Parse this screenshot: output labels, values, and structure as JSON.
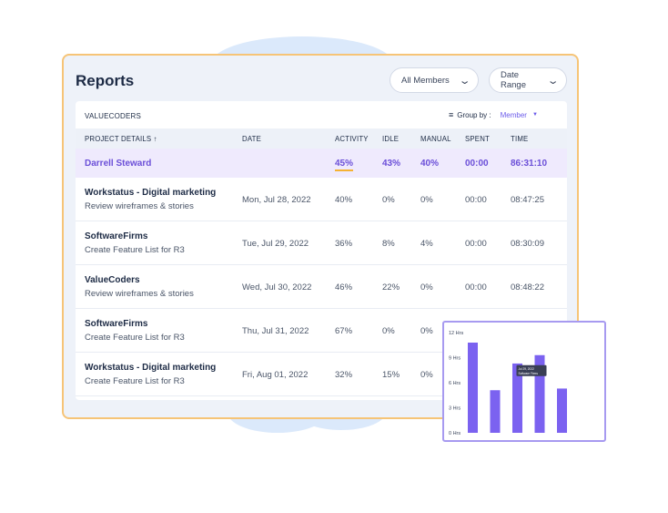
{
  "header": {
    "title": "Reports",
    "members_filter": "All Members",
    "date_filter": "Date Range"
  },
  "card": {
    "org": "VALUECODERS",
    "group_by_label": "Group by :",
    "group_by_value": "Member"
  },
  "columns": [
    "PROJECT DETAILS ↑",
    "DATE",
    "ACTIVITY",
    "IDLE",
    "MANUAL",
    "SPENT",
    "TIME"
  ],
  "summary": {
    "name": "Darrell Steward",
    "activity": "45%",
    "idle": "43%",
    "manual": "40%",
    "spent": "00:00",
    "time": "86:31:10"
  },
  "rows": [
    {
      "project": "Workstatus - Digital marketing",
      "task": "Review wireframes & stories",
      "date": "Mon, Jul 28, 2022",
      "activity": "40%",
      "idle": "0%",
      "manual": "0%",
      "spent": "00:00",
      "time": "08:47:25"
    },
    {
      "project": "SoftwareFirms",
      "task": "Create Feature List for R3",
      "date": "Tue, Jul 29, 2022",
      "activity": "36%",
      "idle": "8%",
      "manual": "4%",
      "spent": "00:00",
      "time": "08:30:09"
    },
    {
      "project": "ValueCoders",
      "task": "Review wireframes & stories",
      "date": "Wed, Jul 30, 2022",
      "activity": "46%",
      "idle": "22%",
      "manual": "0%",
      "spent": "00:00",
      "time": "08:48:22"
    },
    {
      "project": "SoftwareFirms",
      "task": "Create Feature List for R3",
      "date": "Thu, Jul 31, 2022",
      "activity": "67%",
      "idle": "0%",
      "manual": "0%",
      "spent": "",
      "time": ""
    },
    {
      "project": "Workstatus - Digital marketing",
      "task": "Create Feature List for R3",
      "date": "Fri, Aug 01, 2022",
      "activity": "32%",
      "idle": "15%",
      "manual": "0%",
      "spent": "",
      "time": ""
    }
  ],
  "colors": {
    "accent": "#6b4fd8",
    "bar": "#7b62f0",
    "panel_border": "#f6c477",
    "activity_underline": "#f5b233"
  },
  "icons": {
    "dropdown": "chevron-down-icon",
    "group_by": "sort-lines-icon",
    "group_by_caret": "caret-down-icon"
  },
  "chart_data": {
    "type": "bar",
    "y_ticks": [
      "12 Hrs",
      "9 Hrs",
      "6 Hrs",
      "3 Hrs",
      "0 Hrs"
    ],
    "ylim": [
      0,
      12
    ],
    "values": [
      10.8,
      5.1,
      8.3,
      9.3,
      5.3
    ],
    "tooltip": {
      "line1": "Jul 29, 2022",
      "line2": "Software Firms"
    }
  }
}
